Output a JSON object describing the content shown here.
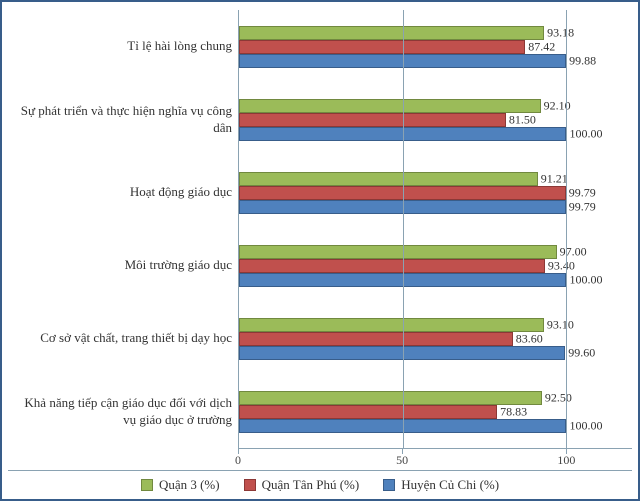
{
  "chart": {
    "type": "bar-horizontal-grouped",
    "frame_border_color": "#385d8a",
    "background_color": "#ffffff",
    "grid_color": "#8aa2b2",
    "font_family": "Times New Roman",
    "label_fontsize": 13,
    "value_fontsize": 12,
    "value_decimals": 2,
    "x_axis": {
      "min": 0,
      "max": 120,
      "ticks": [
        0,
        50,
        100
      ]
    },
    "series": [
      {
        "key": "q3",
        "label": "Quận 3 (%)",
        "color": "#9bbb59",
        "border": "#71893f"
      },
      {
        "key": "tp",
        "label": "Quận Tân Phú (%)",
        "color": "#c0504d",
        "border": "#8c3836"
      },
      {
        "key": "cc",
        "label": "Huyện Củ Chi (%)",
        "color": "#4f81bd",
        "border": "#385d8a"
      }
    ],
    "categories": [
      {
        "label": "Tỉ lệ hài lòng chung",
        "values": {
          "q3": 93.18,
          "tp": 87.42,
          "cc": 99.88
        }
      },
      {
        "label": "Sự phát triển và thực hiện nghĩa vụ công dân",
        "values": {
          "q3": 92.1,
          "tp": 81.5,
          "cc": 100.0
        }
      },
      {
        "label": "Hoạt động giáo dục",
        "values": {
          "q3": 91.21,
          "tp": 99.79,
          "cc": 99.79
        }
      },
      {
        "label": "Môi trường giáo dục",
        "values": {
          "q3": 97.0,
          "tp": 93.4,
          "cc": 100.0
        }
      },
      {
        "label": "Cơ sở vật chất, trang thiết bị dạy học",
        "values": {
          "q3": 93.1,
          "tp": 83.6,
          "cc": 99.6
        }
      },
      {
        "label": "Khả năng tiếp cận giáo dục đối với dịch vụ giáo dục ở trường",
        "values": {
          "q3": 92.5,
          "tp": 78.83,
          "cc": 100.0
        }
      }
    ]
  }
}
